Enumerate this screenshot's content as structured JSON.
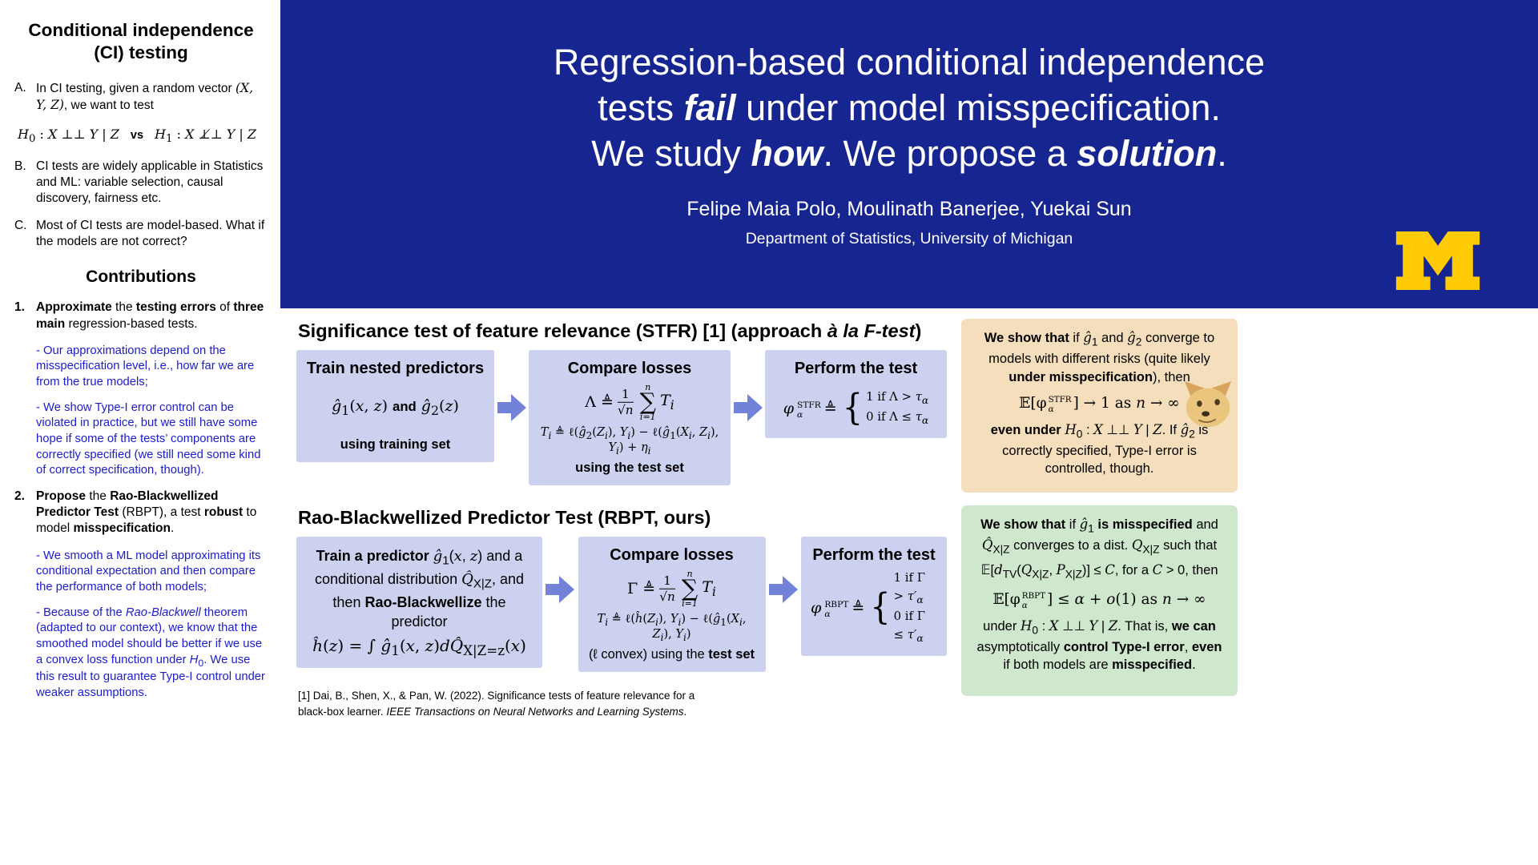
{
  "colors": {
    "hero-blue": "#16258f",
    "maize": "#ffcb05",
    "box-purple": "#cdd1f0",
    "arrow-blue": "#7282d8",
    "note-orange": "#f5debb",
    "note-green": "#cfe8cd",
    "blue-text": "#1b1ccd"
  },
  "symbols": {
    "sum": "∑",
    "brace": "{"
  },
  "sidebar": {
    "title": "Conditional independence (CI) testing",
    "items": [
      {
        "label": "A.",
        "text": "In CI testing, given a random vector *(X, Y, Z)*, we want to test"
      },
      {
        "label": "B.",
        "text": "CI tests are widely applicable in Statistics and ML: variable selection, causal discovery, fairness etc."
      },
      {
        "label": "C.",
        "text": "Most of CI tests are model-based. What if the models are not correct?"
      }
    ],
    "hypotheses": {
      "h0": "*H*_{0} : *X* ⊥⊥ *Y* | *Z*",
      "vs": "vs",
      "h1": "*H*_{1} : *X* ⊥̸⊥ *Y* | *Z*"
    },
    "contributions_title": "Contributions",
    "contributions": [
      {
        "label": "1.",
        "head": "**Approximate** the **testing errors** of **three main** regression-based tests.",
        "notes": [
          "- Our approximations depend on the misspecification level, i.e., how far we are from the true models;",
          "- We show Type-I error control can be violated in practice, but we still have some hope if some of the tests’ components are correctly specified (we still need some kind of correct specification, though)."
        ]
      },
      {
        "label": "2.",
        "head": "**Propose** the **Rao-Blackwellized Predictor Test** (RBPT), a test **robust** to model **misspecification**.",
        "notes": [
          "- We smooth a ML model approximating its conditional expectation and then compare the performance of both models;",
          "- Because of the *Rao-Blackwell* theorem (adapted to our context), we know that the smoothed model should be better if we use a convex loss function under *H*_{0}. We use this result to guarantee Type-I control under weaker assumptions."
        ]
      }
    ]
  },
  "hero": {
    "title_lines": [
      "Regression-based conditional independence",
      "tests **fail** under model misspecification.",
      "We study **how**. We propose a **solution**."
    ],
    "authors": "Felipe Maia Polo, Moulinath Banerjee, Yuekai Sun",
    "affiliation": "Department of Statistics, University of Michigan",
    "logo": "university-of-michigan-block-m"
  },
  "stfr": {
    "heading": "Significance test of feature relevance (STFR) [1] (approach *à la F-test*)",
    "box1": {
      "title": "Train nested predictors",
      "formula": "*ĝ*_{1}(*x*, *z*) **and** *ĝ*_{2}(*z*)",
      "caption": "using training set"
    },
    "box2": {
      "title": "Compare losses",
      "lhs": "Λ ≜",
      "frac_num": "1",
      "frac_den": "√n",
      "sum_top": "n",
      "sum_bot": "i=1",
      "sum_arg": "*T_{i}*",
      "t_def": "*T_{i}* ≜ ℓ(*ĝ*_{2}(*Z_{i}*), *Y_{i}*) − ℓ(*ĝ*_{1}(*X_{i}*, *Z_{i}*), *Y_{i}*) + *η_{i}*",
      "caption": "using the test set"
    },
    "box3": {
      "title": "Perform the test",
      "phi": "φ",
      "sup": "STFR",
      "sub": "α",
      "defeq": "≜",
      "case1": "1 if Λ > *τ_{α}*",
      "case2": "0 if Λ ≤ *τ_{α}*"
    },
    "note": {
      "p1": "**We show that** if *ĝ*_{1} and *ĝ*_{2} converge to models with different risks (quite likely **under misspecification**), then",
      "eq_pre": "𝔼[φ",
      "eq_sup": "STFR",
      "eq_sub": "α",
      "eq_post": "] → 1 as *n* → ∞",
      "p2": "**even under** *H*_{0} : *X* ⊥⊥ *Y* | *Z*. If *ĝ*_{2} is correctly specified, Type-I error is controlled, though."
    }
  },
  "rbpt": {
    "heading": "Rao-Blackwellized Predictor Test (RBPT, ours)",
    "box1": {
      "title": "**Train a predictor** *ĝ*_{1}(*x*, *z*) and a conditional distribution *Q̂*_{X|Z}, and then **Rao-Blackwellize** the predictor",
      "formula": "*ĥ*(*z*) = ∫ *ĝ*_{1}(*x*, *z*)*dQ̂*_{X|Z=z}(*x*)"
    },
    "box2": {
      "title": "Compare losses",
      "lhs": "Γ ≜",
      "frac_num": "1",
      "frac_den": "√n",
      "sum_top": "n",
      "sum_bot": "i=1",
      "sum_arg": "*T_{i}*",
      "t_def": "*T_{i}* ≜ ℓ(*ĥ*(*Z_{i}*), *Y_{i}*) − ℓ(*ĝ*_{1}(*X_{i}*, *Z_{i}*), *Y_{i}*)",
      "caption": "(ℓ convex) using the **test set**"
    },
    "box3": {
      "title": "Perform the test",
      "phi": "φ",
      "sup": "RBPT",
      "sub": "α",
      "defeq": "≜",
      "case1": "1 if Γ > *τ′_{α}*",
      "case2": "0 if Γ ≤ *τ′_{α}*"
    },
    "note": {
      "p1": "**We show that** if *ĝ*_{1} **is misspecified** and *Q̂*_{X|Z} converges to a dist. *Q*_{X|Z} such that",
      "eq1": "𝔼[*d*_{TV}(*Q*_{X|Z}, *P*_{X|Z})] ≤ *C*,  for a *C* > 0, then",
      "eq_pre": "𝔼[φ",
      "eq_sup": "RBPT",
      "eq_sub": "α",
      "eq_post": "] ≤ *α* + *o*(1) as *n* → ∞",
      "p2": "under *H*_{0} : *X* ⊥⊥ *Y* | *Z*. That is, **we can** asymptotically **control Type-I error**, **even** if both models are **misspecified**."
    }
  },
  "footnote": "[1] Dai, B., Shen, X., & Pan, W. (2022). Significance tests of feature relevance for a black-box learner. *IEEE Transactions on Neural Networks and Learning Systems*."
}
